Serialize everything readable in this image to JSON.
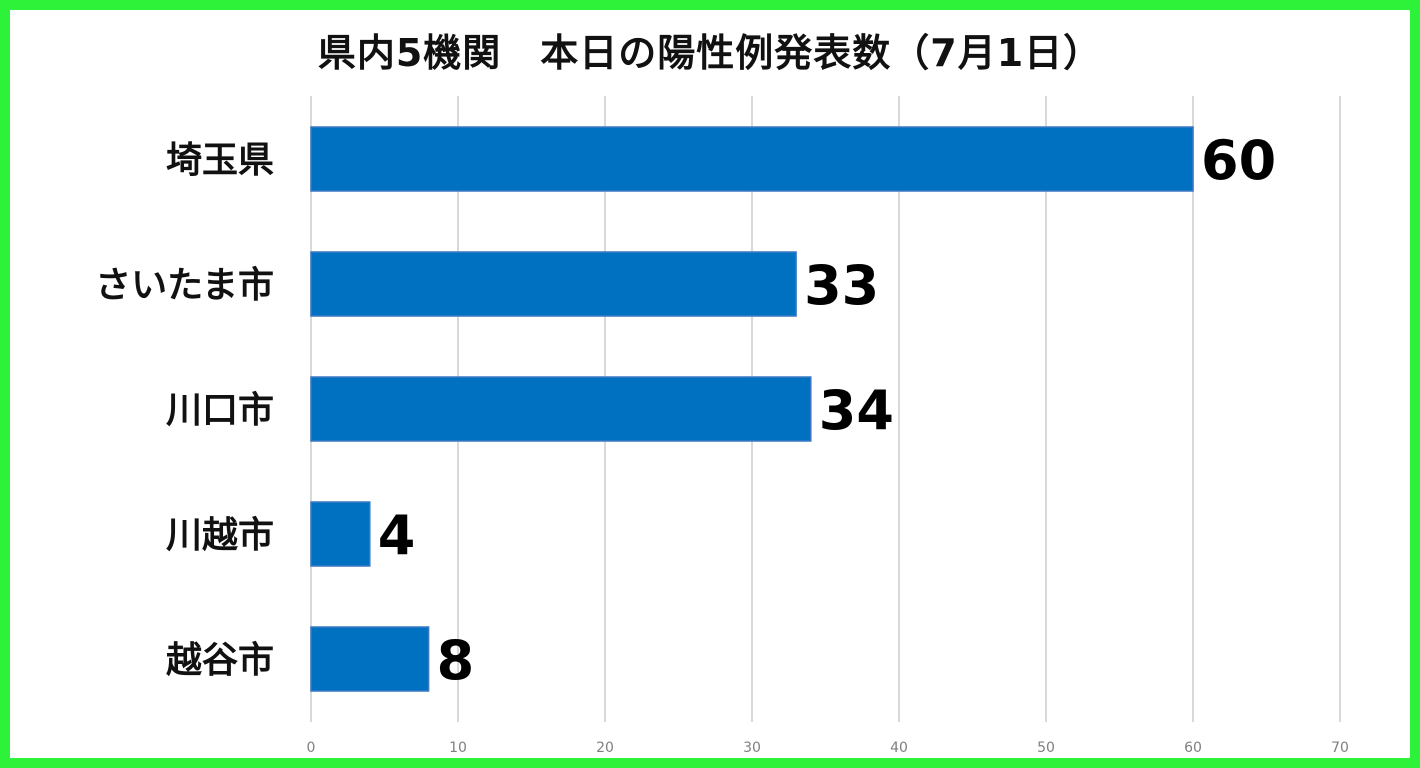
{
  "chart_data": {
    "type": "bar",
    "orientation": "horizontal",
    "title": "県内5機関　本日の陽性例発表数（7月1日）",
    "categories": [
      "埼玉県",
      "さいたま市",
      "川口市",
      "川越市",
      "越谷市"
    ],
    "values": [
      60,
      33,
      34,
      4,
      8
    ],
    "data_labels": [
      "60",
      "33",
      "34",
      "4",
      "8"
    ],
    "xlim": [
      0,
      70
    ],
    "x_ticks": [
      0,
      10,
      20,
      30,
      40,
      50,
      60,
      70
    ],
    "grid": "vertical",
    "legend": "none",
    "colors": {
      "bar": "#0070c0",
      "bar_border": "#3a78c4",
      "gridline": "#d9d9d9",
      "frame": "#2ef23a"
    }
  }
}
